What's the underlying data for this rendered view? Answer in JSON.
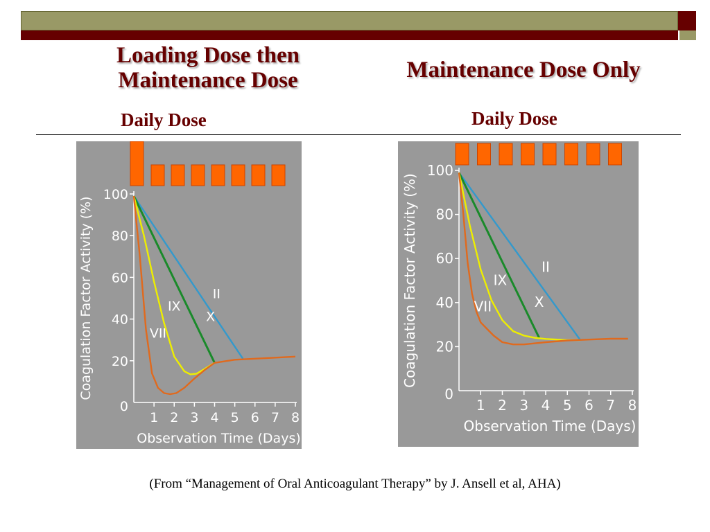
{
  "slide": {
    "left_title": "Loading Dose then Maintenance Dose",
    "right_title": "Maintenance Dose Only",
    "left_subtitle": "Daily Dose",
    "right_subtitle": "Daily Dose",
    "caption": "(From “Management of Oral Anticoagulant Therapy” by J. Ansell et al, AHA)",
    "colors": {
      "title": "#660000",
      "bar": "#999966",
      "band": "#660000",
      "panel": "#999999",
      "dose": "#ff6600"
    }
  },
  "chart_data": [
    {
      "type": "line",
      "xlabel": "Observation Time (Days)",
      "ylabel": "Coagulation Factor Activity (%)",
      "xlim": [
        0,
        8
      ],
      "ylim": [
        0,
        100
      ],
      "x_ticks": [
        "1",
        "2",
        "3",
        "4",
        "5",
        "6",
        "7",
        "8"
      ],
      "y_ticks": [
        "0",
        "20",
        "40",
        "60",
        "80",
        "100"
      ],
      "doses": {
        "loading": 1,
        "maintenance": 7
      },
      "series": [
        {
          "name": "VII",
          "color": "#e06a1e",
          "points": [
            [
              0,
              99
            ],
            [
              0.3,
              70
            ],
            [
              0.6,
              35
            ],
            [
              0.9,
              14
            ],
            [
              1.2,
              7
            ],
            [
              1.5,
              4.5
            ],
            [
              1.8,
              4
            ],
            [
              2.1,
              4.5
            ],
            [
              2.5,
              7
            ],
            [
              3,
              11.5
            ],
            [
              3.5,
              15.5
            ],
            [
              4,
              19
            ],
            [
              5,
              20.5
            ],
            [
              6,
              21
            ],
            [
              7,
              21.5
            ],
            [
              8,
              22
            ]
          ]
        },
        {
          "name": "IX",
          "color": "#eeee00",
          "points": [
            [
              0,
              99
            ],
            [
              0.5,
              80
            ],
            [
              1,
              58
            ],
            [
              1.5,
              38
            ],
            [
              2,
              22
            ],
            [
              2.5,
              15
            ],
            [
              2.8,
              13.5
            ],
            [
              3.1,
              13.8
            ],
            [
              3.5,
              16
            ],
            [
              4,
              19
            ]
          ]
        },
        {
          "name": "X",
          "color": "#1a8a2a",
          "points": [
            [
              0,
              99
            ],
            [
              4,
              19
            ]
          ]
        },
        {
          "name": "II",
          "color": "#3399cc",
          "points": [
            [
              0,
              99
            ],
            [
              5.4,
              21
            ]
          ]
        }
      ],
      "labels": [
        {
          "text": "II",
          "x": 4.1,
          "y": 50
        },
        {
          "text": "X",
          "x": 3.8,
          "y": 39
        },
        {
          "text": "IX",
          "x": 2.0,
          "y": 44
        },
        {
          "text": "VII",
          "x": 1.2,
          "y": 31
        }
      ]
    },
    {
      "type": "line",
      "xlabel": "Observation Time (Days)",
      "ylabel": "Coagulation Factor Activity (%)",
      "xlim": [
        0,
        8
      ],
      "ylim": [
        0,
        100
      ],
      "x_ticks": [
        "1",
        "2",
        "3",
        "4",
        "5",
        "6",
        "7",
        "8"
      ],
      "y_ticks": [
        "0",
        "20",
        "40",
        "60",
        "80",
        "100"
      ],
      "doses": {
        "loading": 0,
        "maintenance": 8
      },
      "series": [
        {
          "name": "VII",
          "color": "#e06a1e",
          "points": [
            [
              0,
              99
            ],
            [
              0.2,
              80
            ],
            [
              0.4,
              58
            ],
            [
              0.6,
              44
            ],
            [
              0.8,
              36
            ],
            [
              1,
              31
            ],
            [
              1.3,
              28
            ],
            [
              1.6,
              25
            ],
            [
              2,
              22
            ],
            [
              2.5,
              21
            ],
            [
              3,
              21
            ],
            [
              4,
              22
            ],
            [
              5,
              22.8
            ],
            [
              6,
              23.2
            ],
            [
              7,
              23.6
            ],
            [
              7.8,
              23.6
            ]
          ]
        },
        {
          "name": "IX",
          "color": "#eeee00",
          "points": [
            [
              0,
              99
            ],
            [
              0.5,
              75
            ],
            [
              1,
              55
            ],
            [
              1.5,
              41
            ],
            [
              2,
              32
            ],
            [
              2.5,
              27
            ],
            [
              3,
              25
            ],
            [
              3.5,
              24
            ],
            [
              4,
              23.5
            ],
            [
              5,
              23
            ],
            [
              5.6,
              23
            ]
          ]
        },
        {
          "name": "X",
          "color": "#1a8a2a",
          "points": [
            [
              0,
              99
            ],
            [
              3.7,
              24
            ]
          ]
        },
        {
          "name": "II",
          "color": "#3399cc",
          "points": [
            [
              0,
              99
            ],
            [
              5.6,
              23
            ]
          ]
        }
      ],
      "labels": [
        {
          "text": "II",
          "x": 4.0,
          "y": 54
        },
        {
          "text": "X",
          "x": 3.7,
          "y": 38
        },
        {
          "text": "IX",
          "x": 1.9,
          "y": 48
        },
        {
          "text": "VII",
          "x": 1.1,
          "y": 36
        }
      ]
    }
  ]
}
